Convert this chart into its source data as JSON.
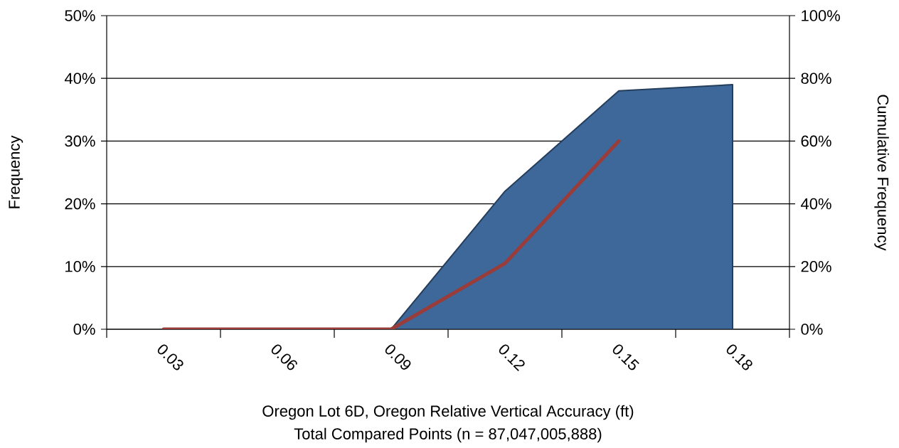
{
  "chart_data": {
    "type": "area",
    "categories": [
      "0.03",
      "0.06",
      "0.09",
      "0.12",
      "0.15",
      "0.18"
    ],
    "series": [
      {
        "axis": "y",
        "color": "#3d6899",
        "values": [
          0,
          0,
          0,
          22,
          38,
          39
        ]
      },
      {
        "type": "line",
        "axis": "y2",
        "color": "#993c3a",
        "values": [
          0,
          0,
          0,
          21,
          60,
          null
        ]
      }
    ],
    "ylim": [
      0,
      50
    ],
    "yticks": [
      {
        "value": 0,
        "label": "0%"
      },
      {
        "value": 10,
        "label": "10%"
      },
      {
        "value": 20,
        "label": "20%"
      },
      {
        "value": 30,
        "label": "30%"
      },
      {
        "value": 40,
        "label": "40%"
      },
      {
        "value": 50,
        "label": "50%"
      }
    ],
    "y2lim": [
      0,
      100
    ],
    "y2ticks": [
      {
        "value": 0,
        "label": "0%"
      },
      {
        "value": 20,
        "label": "20%"
      },
      {
        "value": 40,
        "label": "40%"
      },
      {
        "value": 60,
        "label": "60%"
      },
      {
        "value": 80,
        "label": "80%"
      },
      {
        "value": 100,
        "label": "100%"
      }
    ],
    "xlabel": "Oregon Lot 6D, Oregon Relative Vertical Accuracy (ft)",
    "ylabel": "Frequency",
    "y2label": "Cumulative Frequency",
    "annotations": [
      "Total Compared Points (n = 87,047,005,888)"
    ],
    "grid": "y"
  }
}
